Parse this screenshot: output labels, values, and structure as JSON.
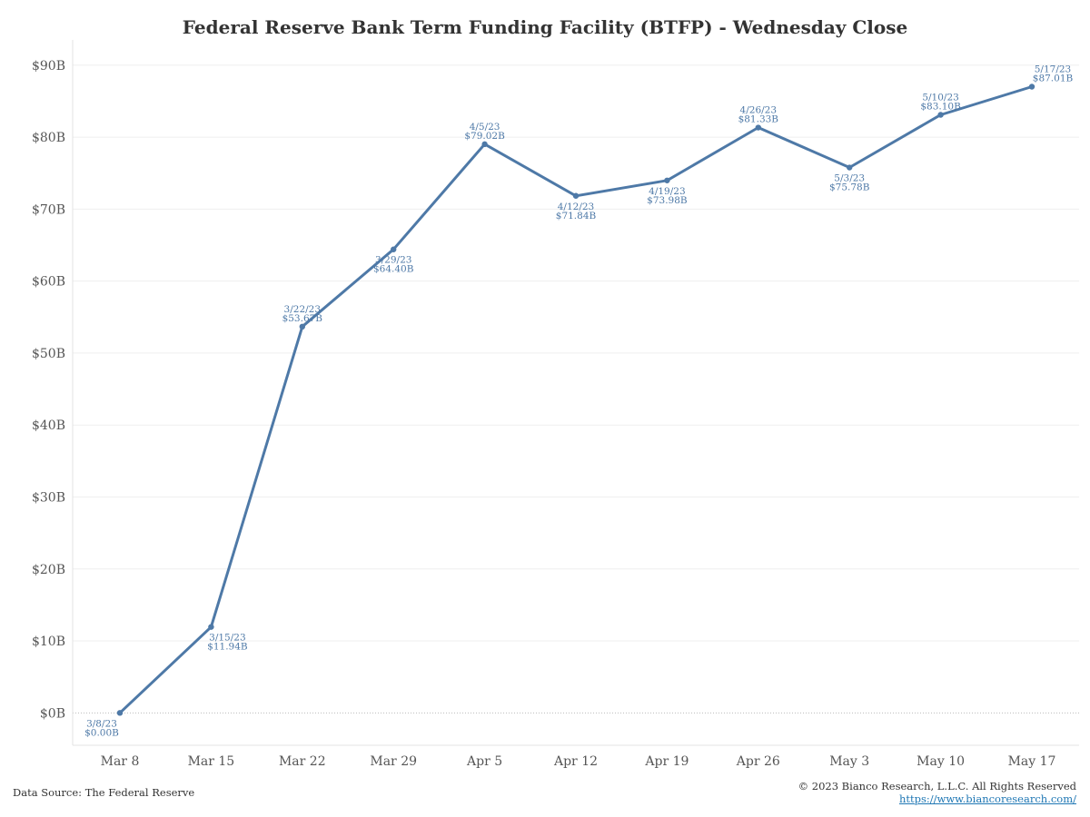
{
  "chart_data": {
    "type": "line",
    "title": "Federal Reserve Bank Term Funding Facility (BTFP) - Wednesday Close",
    "xlabel": "",
    "ylabel": "",
    "categories": [
      "Mar 8",
      "Mar 15",
      "Mar 22",
      "Mar 29",
      "Apr 5",
      "Apr 12",
      "Apr 19",
      "Apr 26",
      "May 3",
      "May 10",
      "May 17"
    ],
    "series": [
      {
        "values": [
          0.0,
          11.94,
          53.67,
          64.4,
          79.02,
          71.84,
          73.98,
          81.33,
          75.78,
          83.1,
          87.01
        ]
      }
    ],
    "point_dates": [
      "3/8/23",
      "3/15/23",
      "3/22/23",
      "3/29/23",
      "4/5/23",
      "4/12/23",
      "4/19/23",
      "4/26/23",
      "5/3/23",
      "5/10/23",
      "5/17/23"
    ],
    "point_values_text": [
      "$0.00B",
      "$11.94B",
      "$53.67B",
      "$64.40B",
      "$79.02B",
      "$71.84B",
      "$73.98B",
      "$81.33B",
      "$75.78B",
      "$83.10B",
      "$87.01B"
    ],
    "y_ticks": [
      0,
      10,
      20,
      30,
      40,
      50,
      60,
      70,
      80,
      90
    ],
    "y_tick_labels": [
      "$0B",
      "$10B",
      "$20B",
      "$30B",
      "$40B",
      "$50B",
      "$60B",
      "$70B",
      "$80B",
      "$90B"
    ],
    "ylim": [
      -4.5,
      93
    ],
    "grid": true,
    "legend": "none",
    "line_color": "#4E79A7"
  },
  "footer": {
    "source": "Data Source: The Federal Reserve",
    "copyright": "© 2023 Bianco Research, L.L.C. All Rights Reserved",
    "link": "https://www.biancoresearch.com/"
  }
}
